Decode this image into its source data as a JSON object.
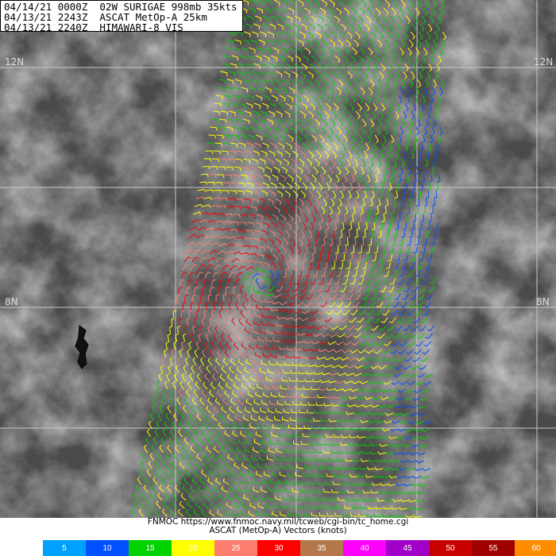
{
  "header": {
    "lines": [
      "04/14/21 0000Z  02W SURIGAE 998mb 35kts",
      "04/13/21 2243Z  ASCAT MetOp-A 25km",
      "04/13/21 2240Z  HIMAWARI-8 VIS"
    ]
  },
  "map": {
    "lat_labels": [
      "12N",
      "12N",
      "8N",
      "8N"
    ],
    "background": "visible satellite imagery (grayscale)",
    "gridline_color": "#c8c8c8"
  },
  "footer": {
    "source": "FNMOC https://www.fnmoc.navy.mil/tcweb/cgi-bin/tc_home.cgi",
    "product": "ASCAT (MetOp-A) Vectors (knots)"
  },
  "legend": [
    {
      "label": "5",
      "color": "#00a0ff"
    },
    {
      "label": "10",
      "color": "#0050ff"
    },
    {
      "label": "15",
      "color": "#00d200"
    },
    {
      "label": "20",
      "color": "#ffff00"
    },
    {
      "label": "25",
      "color": "#ff7d6e"
    },
    {
      "label": "30",
      "color": "#ff0000"
    },
    {
      "label": "35",
      "color": "#b4784b"
    },
    {
      "label": "40",
      "color": "#ff00ff"
    },
    {
      "label": "45",
      "color": "#a000c8"
    },
    {
      "label": "50",
      "color": "#c80000"
    },
    {
      "label": "55",
      "color": "#a00000"
    },
    {
      "label": "60",
      "color": "#ff8c00"
    }
  ]
}
